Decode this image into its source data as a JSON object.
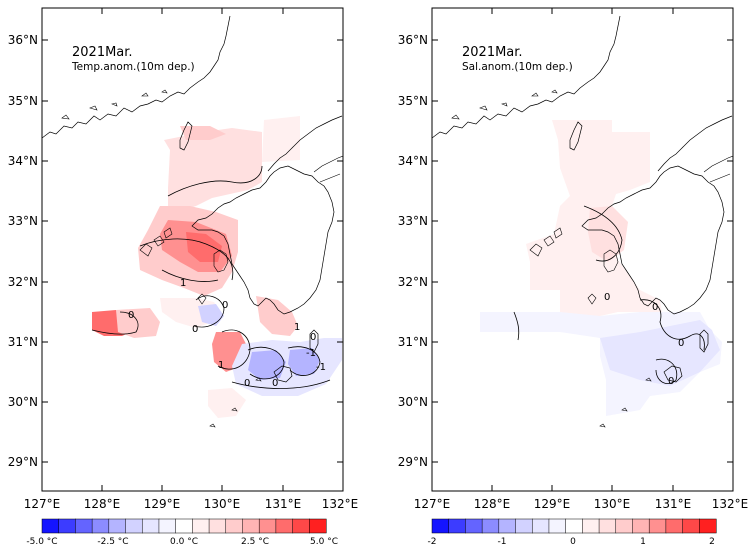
{
  "panels": [
    {
      "title": "2021Mar.",
      "subtitle": "Temp.anom.(10m dep.)",
      "colorbar": {
        "labels": [
          "-5.0 °C",
          "-2.5 °C",
          "0.0 °C",
          "2.5 °C",
          "5.0 °C"
        ],
        "range": [
          -5,
          5
        ],
        "colors": [
          "#1414ff",
          "#3c3cff",
          "#6464ff",
          "#8c8cff",
          "#b4b4ff",
          "#d2d2ff",
          "#e6e6ff",
          "#f4f4ff",
          "#ffffff",
          "#fff0f0",
          "#ffe0e0",
          "#ffcccc",
          "#ffb4b4",
          "#ff9090",
          "#ff6c6c",
          "#ff4848",
          "#ff2020"
        ]
      },
      "contour_labels": [
        "0",
        "0",
        "0",
        "0",
        "0",
        "0",
        "1",
        "1",
        "-1",
        "1",
        "-1"
      ]
    },
    {
      "title": "2021Mar.",
      "subtitle": "Sal.anom.(10m dep.)",
      "colorbar": {
        "labels": [
          "-2",
          "-1",
          "0",
          "1",
          "2"
        ],
        "range": [
          -2,
          2
        ],
        "colors": [
          "#1414ff",
          "#3c3cff",
          "#6464ff",
          "#8c8cff",
          "#b4b4ff",
          "#d2d2ff",
          "#e6e6ff",
          "#f4f4ff",
          "#ffffff",
          "#fff0f0",
          "#ffe0e0",
          "#ffcccc",
          "#ffb4b4",
          "#ff9090",
          "#ff6c6c",
          "#ff4848",
          "#ff2020"
        ]
      },
      "contour_labels": [
        "0",
        "0",
        "0",
        "0"
      ]
    }
  ],
  "axes": {
    "lat_labels": [
      "36°N",
      "35°N",
      "34°N",
      "33°N",
      "32°N",
      "31°N",
      "30°N",
      "29°N"
    ],
    "lon_labels": [
      "127°E",
      "128°E",
      "129°E",
      "130°E",
      "131°E",
      "132°E"
    ]
  }
}
